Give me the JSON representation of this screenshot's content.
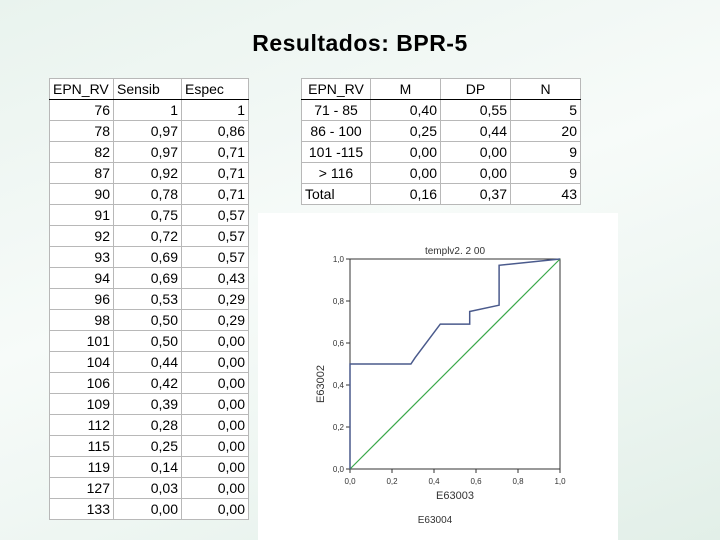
{
  "slide": {
    "title": "Resultados: BPR-5"
  },
  "roc_table": {
    "headers": [
      "EPN_RV",
      "Sensib",
      "Espec"
    ],
    "rows": [
      [
        "76",
        "1",
        "1"
      ],
      [
        "78",
        "0,97",
        "0,86"
      ],
      [
        "82",
        "0,97",
        "0,71"
      ],
      [
        "87",
        "0,92",
        "0,71"
      ],
      [
        "90",
        "0,78",
        "0,71"
      ],
      [
        "91",
        "0,75",
        "0,57"
      ],
      [
        "92",
        "0,72",
        "0,57"
      ],
      [
        "93",
        "0,69",
        "0,57"
      ],
      [
        "94",
        "0,69",
        "0,43"
      ],
      [
        "96",
        "0,53",
        "0,29"
      ],
      [
        "98",
        "0,50",
        "0,29"
      ],
      [
        "101",
        "0,50",
        "0,00"
      ],
      [
        "104",
        "0,44",
        "0,00"
      ],
      [
        "106",
        "0,42",
        "0,00"
      ],
      [
        "109",
        "0,39",
        "0,00"
      ],
      [
        "112",
        "0,28",
        "0,00"
      ],
      [
        "115",
        "0,25",
        "0,00"
      ],
      [
        "119",
        "0,14",
        "0,00"
      ],
      [
        "127",
        "0,03",
        "0,00"
      ],
      [
        "133",
        "0,00",
        "0,00"
      ]
    ]
  },
  "summary_table": {
    "headers": [
      "EPN_RV",
      "M",
      "DP",
      "N"
    ],
    "rows": [
      [
        "71 - 85",
        "0,40",
        "0,55",
        "5"
      ],
      [
        "86 - 100",
        "0,25",
        "0,44",
        "20"
      ],
      [
        "101 -115",
        "0,00",
        "0,00",
        "9"
      ],
      [
        "> 116",
        "0,00",
        "0,00",
        "9"
      ]
    ],
    "total": [
      "Total",
      "0,16",
      "0,37",
      "43"
    ]
  },
  "chart_data": {
    "type": "line",
    "title": "templv2. 2 00",
    "xlabel": "E63003",
    "ylabel": "E63002",
    "footer": "E63004",
    "xlim": [
      0,
      1
    ],
    "ylim": [
      0,
      1
    ],
    "x_ticks": [
      "0,0",
      "0,2",
      "0,4",
      "0,6",
      "0,8",
      "1,0"
    ],
    "y_ticks": [
      "0,0",
      "0,2",
      "0,4",
      "0,6",
      "0,8",
      "1,0"
    ],
    "grid": false,
    "colors": {
      "roc": "#4a5a8c",
      "reference": "#3aa84a"
    },
    "series": [
      {
        "x": [
          0,
          0,
          0.29,
          0.29,
          0.31,
          0.43,
          0.43,
          0.43,
          0.57,
          0.57,
          0.71,
          0.71,
          0.71,
          0.71,
          1
        ],
        "y": [
          0,
          0.5,
          0.5,
          0.5,
          0.53,
          0.69,
          0.69,
          0.69,
          0.69,
          0.75,
          0.78,
          0.97,
          0.97,
          0.97,
          1
        ]
      },
      {
        "x": [
          0,
          1
        ],
        "y": [
          0,
          1
        ]
      }
    ]
  }
}
